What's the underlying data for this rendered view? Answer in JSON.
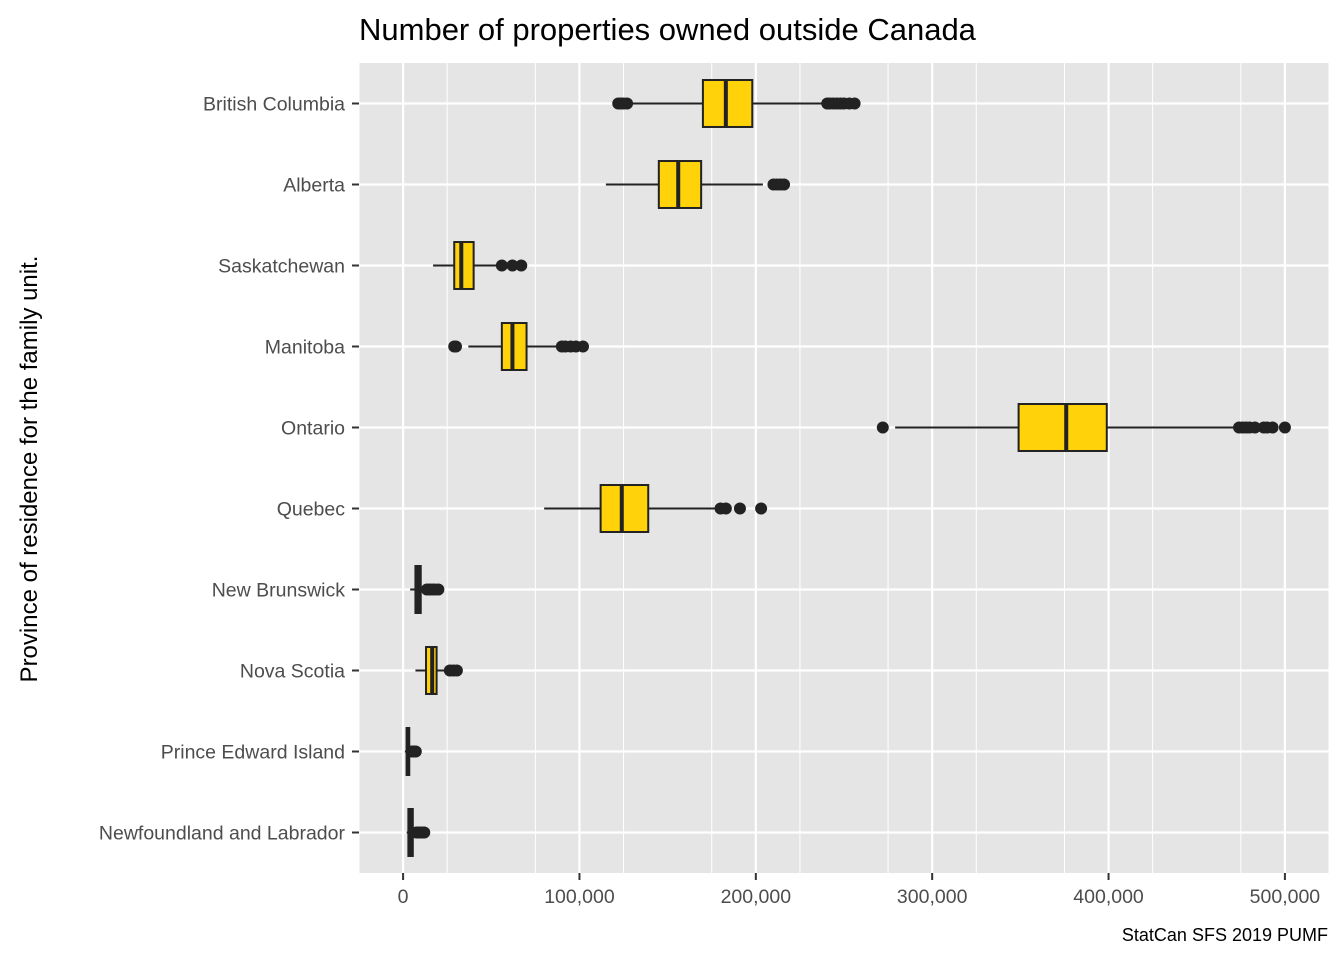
{
  "chart_data": {
    "type": "boxplot",
    "orientation": "horizontal",
    "title": "Number of properties owned outside Canada",
    "xlabel": "",
    "ylabel": "Province of residence for the family unit.",
    "caption": "StatCan SFS 2019 PUMF",
    "xlim": [
      -25000,
      525000
    ],
    "x_ticks": [
      0,
      100000,
      200000,
      300000,
      400000,
      500000
    ],
    "x_tick_labels": [
      "0",
      "100,000",
      "200,000",
      "300,000",
      "400,000",
      "500,000"
    ],
    "grid": true,
    "colors": {
      "panel": "#e5e5e5",
      "grid": "#ffffff",
      "box_fill": "#ffd20a",
      "line": "#222222"
    },
    "categories": [
      "British Columbia",
      "Alberta",
      "Saskatchewan",
      "Manitoba",
      "Ontario",
      "Quebec",
      "New Brunswick",
      "Nova Scotia",
      "Prince Edward Island",
      "Newfoundland and Labrador"
    ],
    "boxes": [
      {
        "category": "British Columbia",
        "whisker_low": 129000,
        "q1": 170000,
        "median": 183000,
        "q3": 198000,
        "whisker_high": 240000,
        "outliers": [
          122000,
          123500,
          125000,
          127000,
          240500,
          242000,
          244000,
          246000,
          248000,
          250000,
          253000,
          256000
        ]
      },
      {
        "category": "Alberta",
        "whisker_low": 115000,
        "q1": 145000,
        "median": 156000,
        "q3": 169000,
        "whisker_high": 204000,
        "outliers": [
          210000,
          212000,
          214000,
          216000
        ]
      },
      {
        "category": "Saskatchewan",
        "whisker_low": 17000,
        "q1": 29000,
        "median": 33000,
        "q3": 40000,
        "whisker_high": 55000,
        "outliers": [
          56000,
          62000,
          67000
        ]
      },
      {
        "category": "Manitoba",
        "whisker_low": 37000,
        "q1": 56000,
        "median": 62000,
        "q3": 70000,
        "whisker_high": 89000,
        "outliers": [
          29000,
          30000,
          90000,
          92000,
          95000,
          98000,
          102000
        ]
      },
      {
        "category": "Ontario",
        "whisker_low": 279000,
        "q1": 349000,
        "median": 376000,
        "q3": 399000,
        "whisker_high": 472000,
        "outliers": [
          272000,
          474000,
          476000,
          478000,
          480000,
          483000,
          488000,
          490000,
          493000,
          500000
        ]
      },
      {
        "category": "Quebec",
        "whisker_low": 80000,
        "q1": 112000,
        "median": 124000,
        "q3": 139000,
        "whisker_high": 178000,
        "outliers": [
          180000,
          183000,
          191000,
          203000
        ]
      },
      {
        "category": "New Brunswick",
        "whisker_low": 4000,
        "q1": 7000,
        "median": 8500,
        "q3": 10000,
        "whisker_high": 12500,
        "outliers": [
          13500,
          15000,
          16500,
          18000,
          20000
        ]
      },
      {
        "category": "Nova Scotia",
        "whisker_low": 7000,
        "q1": 13000,
        "median": 16500,
        "q3": 19000,
        "whisker_high": 25000,
        "outliers": [
          26500,
          28500,
          30500
        ]
      },
      {
        "category": "Prince Edward Island",
        "whisker_low": 1000,
        "q1": 2000,
        "median": 2700,
        "q3": 3500,
        "whisker_high": 4500,
        "outliers": [
          5000,
          6000,
          6500,
          7200
        ]
      },
      {
        "category": "Newfoundland and Labrador",
        "whisker_low": 2000,
        "q1": 3000,
        "median": 4000,
        "q3": 5500,
        "whisker_high": 7000,
        "outliers": [
          7500,
          8500,
          9500,
          10500,
          11500,
          12000
        ]
      }
    ]
  }
}
